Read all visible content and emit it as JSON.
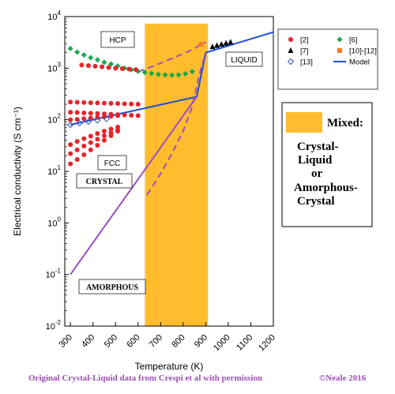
{
  "chart_data": {
    "type": "scatter",
    "xlabel": "Temperature (K)",
    "ylabel": "Electrical conductivity (S cm⁻¹)",
    "xlim": [
      275,
      1200
    ],
    "ylim_log10": [
      -2,
      4
    ],
    "x_ticks": [
      "300",
      "400",
      "500",
      "600",
      "700",
      "800",
      "900",
      "1000",
      "1100",
      "1200"
    ],
    "y_ticks": [
      {
        "base": "10",
        "exp": "4"
      },
      {
        "base": "10",
        "exp": "3"
      },
      {
        "base": "10",
        "exp": "2"
      },
      {
        "base": "10",
        "exp": "1"
      },
      {
        "base": "10",
        "exp": "0"
      },
      {
        "base": "10",
        "exp": "-1"
      },
      {
        "base": "10",
        "exp": "-2"
      }
    ],
    "mixed_region": {
      "x_from": 630,
      "x_to": 910,
      "color": "#ffbd2e"
    },
    "regions": {
      "hcp": "HCP",
      "liquid": "LIQUID",
      "fcc": "FCC",
      "crystal": "CRYSTAL",
      "amorphous": "AMORPHOUS"
    },
    "legend": [
      {
        "label": "[2]",
        "marker": "circle",
        "color": "#e8232a"
      },
      {
        "label": "[6]",
        "marker": "diamond",
        "color": "#1aa84a"
      },
      {
        "label": "[7]",
        "marker": "triangle",
        "color": "#000000"
      },
      {
        "label": "[10]-[12]",
        "marker": "square",
        "color": "#f47c20"
      },
      {
        "label": "[13]",
        "marker": "open-diamond",
        "color": "#3355aa"
      },
      {
        "label": "Model",
        "marker": "line",
        "color": "#1f4fd6"
      }
    ],
    "series": [
      {
        "ref": "[6]",
        "x": [
          300,
          330,
          360,
          390,
          420,
          450,
          480,
          510,
          540,
          570,
          600,
          630,
          660,
          690,
          720,
          750,
          780,
          810,
          840
        ],
        "y": [
          2400,
          2050,
          1800,
          1600,
          1450,
          1300,
          1200,
          1100,
          1000,
          930,
          870,
          830,
          790,
          760,
          740,
          730,
          740,
          780,
          860
        ]
      },
      {
        "ref": "[2]",
        "x": [
          350,
          380,
          410,
          440,
          470,
          500,
          530,
          560,
          590
        ],
        "y": [
          1150,
          1120,
          1090,
          1060,
          1030,
          1000,
          980,
          960,
          940
        ]
      },
      {
        "ref": "[2]",
        "x": [
          300,
          330,
          360,
          390,
          420,
          450,
          480,
          510,
          540,
          570,
          600
        ],
        "y": [
          220,
          218,
          216,
          214,
          212,
          210,
          208,
          206,
          204,
          202,
          200
        ]
      },
      {
        "ref": "[2]",
        "x": [
          300,
          330,
          360,
          390,
          420,
          450,
          480,
          510,
          540,
          570,
          600
        ],
        "y": [
          140,
          138,
          136,
          134,
          132,
          130,
          128,
          126,
          124,
          122,
          120
        ]
      },
      {
        "ref": "[2]",
        "x": [
          300,
          330,
          360,
          390,
          420,
          450,
          480,
          510
        ],
        "y": [
          100,
          102,
          105,
          108,
          111,
          114,
          117,
          120
        ]
      },
      {
        "ref": "[2]",
        "x": [
          300,
          330,
          360,
          390,
          420,
          450,
          480,
          510
        ],
        "y": [
          33,
          38,
          43,
          48,
          54,
          60,
          66,
          72
        ]
      },
      {
        "ref": "[2]",
        "x": [
          300,
          330,
          360,
          390,
          420,
          450,
          480,
          510
        ],
        "y": [
          22,
          26,
          31,
          36,
          42,
          49,
          56,
          63
        ]
      },
      {
        "ref": "[2]",
        "x": [
          300,
          330,
          360,
          390,
          420,
          450,
          480,
          510
        ],
        "y": [
          14,
          17,
          21,
          26,
          32,
          40,
          49,
          60
        ]
      },
      {
        "ref": "[7]",
        "x": [
          930,
          950,
          970,
          990,
          1010
        ],
        "y": [
          2600,
          2750,
          2900,
          3050,
          3200
        ]
      },
      {
        "ref": "[10]-[12]",
        "x": [
          880
        ],
        "y": [
          2900
        ]
      },
      {
        "ref": "[13]",
        "x": [
          300,
          340,
          380,
          420,
          460
        ],
        "y": [
          80,
          86,
          92,
          98,
          104
        ]
      }
    ],
    "model_lines": [
      {
        "name": "crystal-model",
        "color": "#1f4fd6",
        "dash": false,
        "x": [
          300,
          860,
          900,
          1200
        ],
        "y": [
          80,
          280,
          2000,
          5000
        ]
      },
      {
        "name": "amorphous-model",
        "color": "#9b4ec2",
        "dash": false,
        "x": [
          300,
          860
        ],
        "y": [
          0.1,
          280
        ]
      },
      {
        "name": "amorphous-supercooled",
        "color": "#9b4ec2",
        "dash": true,
        "x": [
          600,
          700,
          800,
          850,
          880,
          900
        ],
        "y": [
          850,
          1250,
          1900,
          2400,
          2900,
          3200
        ]
      },
      {
        "name": "amorphous-crystallization",
        "color": "#9b4ec2",
        "dash": true,
        "x": [
          640,
          700,
          750,
          800,
          840,
          870,
          900
        ],
        "y": [
          3.5,
          9,
          22,
          60,
          180,
          700,
          2000
        ]
      }
    ]
  },
  "mixed_legend": {
    "title": "Mixed:",
    "line1": "Crystal-",
    "line2": "Liquid",
    "line3": "or",
    "line4": "Amorphous-",
    "line5": "Crystal"
  },
  "footer": {
    "credit": "Original Crystal-Liquid data from Crespi et al with permission",
    "copyright": "©Neale  2016"
  }
}
